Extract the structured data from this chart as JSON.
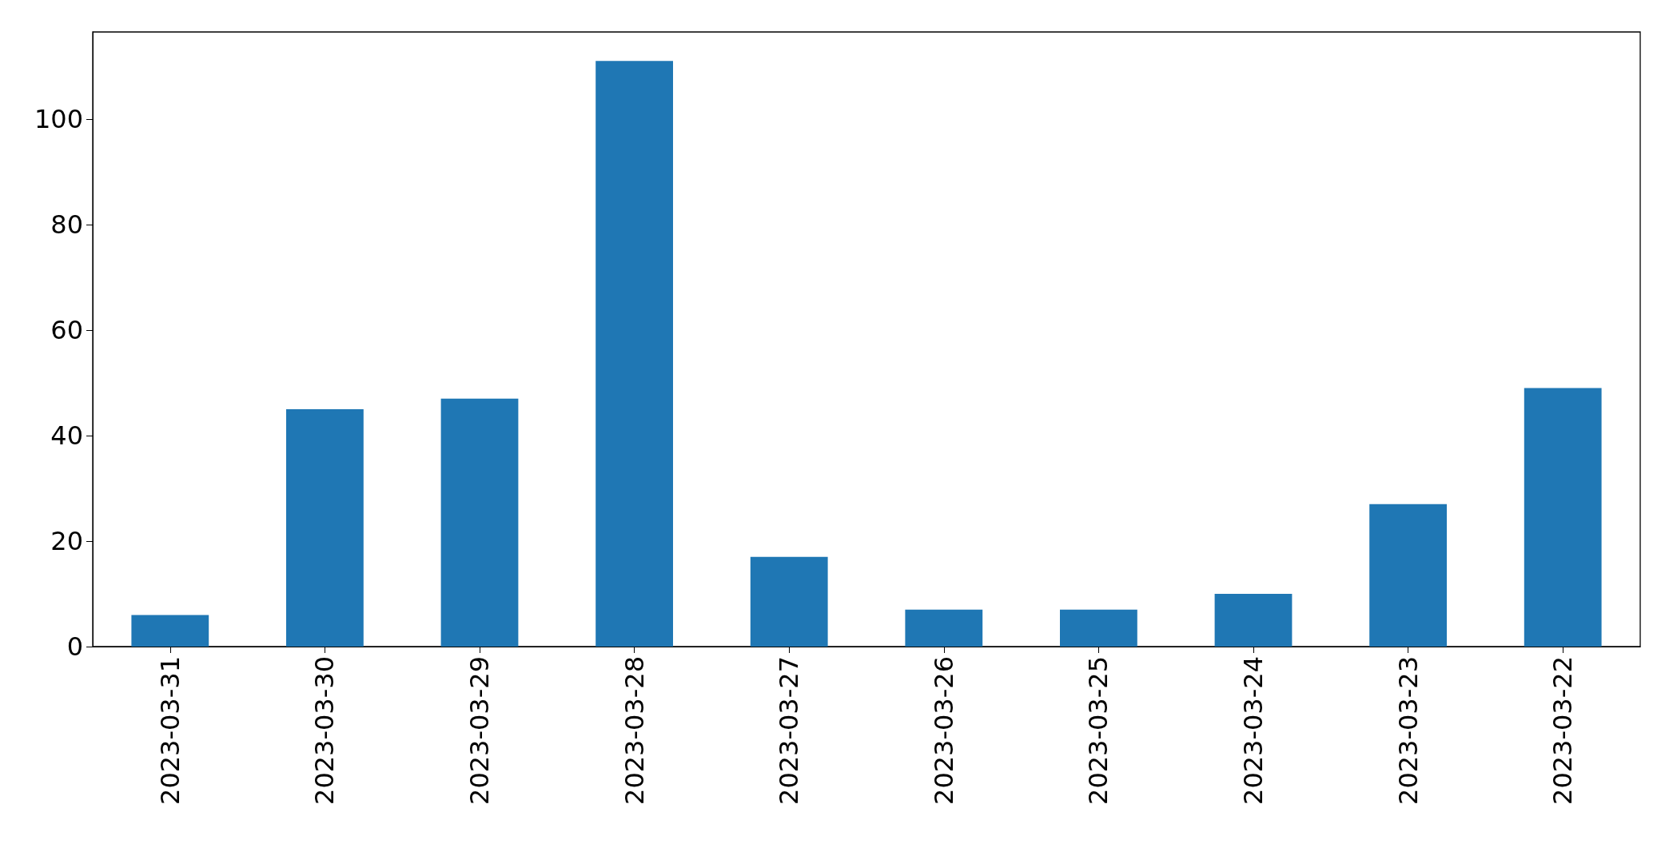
{
  "chart_data": {
    "type": "bar",
    "categories": [
      "2023-03-31",
      "2023-03-30",
      "2023-03-29",
      "2023-03-28",
      "2023-03-27",
      "2023-03-26",
      "2023-03-25",
      "2023-03-24",
      "2023-03-23",
      "2023-03-22"
    ],
    "values": [
      6,
      45,
      47,
      111,
      17,
      7,
      7,
      10,
      27,
      49
    ],
    "color": "#1f77b4",
    "ylim": [
      0,
      116.5
    ],
    "yticks": [
      0,
      20,
      40,
      60,
      80,
      100
    ],
    "grid": false
  }
}
